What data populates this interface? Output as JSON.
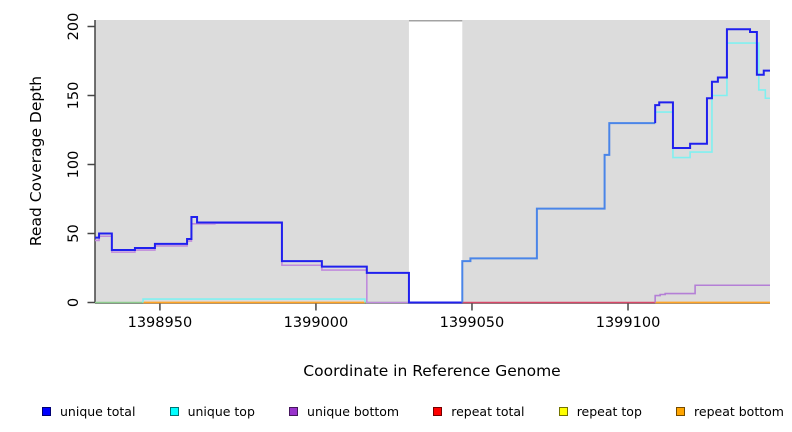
{
  "figure": {
    "x_title": "Coordinate in Reference Genome",
    "y_title": "Read Coverage Depth"
  },
  "chart_data": {
    "type": "line",
    "subtype": "step",
    "title": "",
    "xlabel": "Coordinate in Reference Genome",
    "ylabel": "Read Coverage Depth",
    "xlim": [
      1398929.2,
      1399145.5
    ],
    "ylim": [
      0,
      200
    ],
    "x_ticks": [
      1398950,
      1399000,
      1399050,
      1399100
    ],
    "y_ticks": [
      0,
      50,
      100,
      150,
      200
    ],
    "grid": "off",
    "legend_position": "bottom",
    "background": "#ffffff",
    "plot_background": "#dcdcdc",
    "axis_color": "#454545",
    "masked_region": {
      "from": 1399029.8,
      "to": 1399046.9,
      "color": "#ffffff",
      "top_border": "#a3a3a3"
    },
    "series": [
      {
        "name": "baseline-green-left",
        "color": "#8fcd8f",
        "width": 1.6,
        "steps": [
          [
            1398929.2,
            0
          ]
        ],
        "end": 1398944.6
      },
      {
        "name": "repeat-bottom-left",
        "color": "#ffa426",
        "width": 1.8,
        "steps": [
          [
            1398944.6,
            0
          ]
        ],
        "end": 1399015.7
      },
      {
        "name": "unique-top-left",
        "color": "#80f0f0",
        "width": 1.6,
        "steps": [
          [
            1398944.6,
            0
          ],
          [
            1398944.6,
            2.5
          ],
          [
            1399015.7,
            2.5
          ],
          [
            1399015.7,
            0
          ]
        ],
        "end": 1399015.7
      },
      {
        "name": "baseline-green-mid",
        "color": "#8fcd8f",
        "width": 1.6,
        "steps": [
          [
            1399015.7,
            0
          ]
        ],
        "end": 1399029.8
      },
      {
        "name": "repeat-total-right",
        "color": "#d84868",
        "width": 1.6,
        "steps": [
          [
            1399046.9,
            0
          ]
        ],
        "end": 1399108.7
      },
      {
        "name": "repeat-bottom-right",
        "color": "#ffa426",
        "width": 1.8,
        "steps": [
          [
            1399108.7,
            0
          ]
        ],
        "end": 1399145.5
      },
      {
        "name": "unique-bottom-left",
        "color": "#c08bdc",
        "width": 1.6,
        "steps": [
          [
            1398929.2,
            45
          ],
          [
            1398930.5,
            48
          ],
          [
            1398934.6,
            36.5
          ],
          [
            1398942,
            38
          ],
          [
            1398948.4,
            41
          ],
          [
            1398958.7,
            44.5
          ],
          [
            1398960.1,
            57
          ],
          [
            1398967.6,
            57.5
          ],
          [
            1398989.1,
            27
          ],
          [
            1399001.9,
            23.5
          ],
          [
            1399016.3,
            0
          ]
        ],
        "end": 1399029.8
      },
      {
        "name": "unique-bottom-right",
        "color": "#b47fd6",
        "width": 1.6,
        "steps": [
          [
            1399108.7,
            0
          ],
          [
            1399108.7,
            5
          ],
          [
            1399110.3,
            5.8
          ],
          [
            1399111.9,
            6.5
          ],
          [
            1399121.5,
            12.5
          ]
        ],
        "end": 1399145.5
      },
      {
        "name": "unique-total-left",
        "color": "#2020ee",
        "width": 2,
        "steps": [
          [
            1398929.2,
            47
          ],
          [
            1398930.5,
            50
          ],
          [
            1398934.6,
            38
          ],
          [
            1398942,
            39.5
          ],
          [
            1398948.4,
            42.5
          ],
          [
            1398958.7,
            46
          ],
          [
            1398960.1,
            62
          ],
          [
            1398961.9,
            58
          ],
          [
            1398989.1,
            30
          ],
          [
            1399001.9,
            26
          ],
          [
            1399016.3,
            21.5
          ],
          [
            1399029.8,
            0
          ]
        ],
        "end": 1399046.9
      },
      {
        "name": "unique-total-mid",
        "color": "#4a85e8",
        "width": 2,
        "steps": [
          [
            1399046.9,
            0
          ],
          [
            1399046.9,
            30
          ],
          [
            1399049.5,
            32
          ],
          [
            1399070.8,
            68
          ],
          [
            1399092.5,
            107
          ],
          [
            1399094,
            130
          ]
        ],
        "end": 1399108.7
      },
      {
        "name": "unique-top-right",
        "color": "#80f0f0",
        "width": 1.6,
        "steps": [
          [
            1399108.7,
            130
          ],
          [
            1399108.7,
            138
          ],
          [
            1399114.4,
            105
          ],
          [
            1399119.9,
            109
          ],
          [
            1399126.9,
            150
          ],
          [
            1399131.7,
            188
          ],
          [
            1399141.9,
            154
          ],
          [
            1399144,
            148
          ]
        ],
        "end": 1399145.5
      },
      {
        "name": "unique-total-right",
        "color": "#2020ee",
        "width": 2,
        "steps": [
          [
            1399108.7,
            130
          ],
          [
            1399108.7,
            143
          ],
          [
            1399110,
            145
          ],
          [
            1399114.4,
            112
          ],
          [
            1399119.9,
            115
          ],
          [
            1399125.3,
            148
          ],
          [
            1399126.9,
            160
          ],
          [
            1399128.8,
            163
          ],
          [
            1399131.7,
            198
          ],
          [
            1399139.1,
            196
          ],
          [
            1399141.3,
            165
          ],
          [
            1399143.5,
            168
          ]
        ],
        "end": 1399145.5
      }
    ],
    "legend": [
      {
        "label": "unique total",
        "color": "#0000ff"
      },
      {
        "label": "unique top",
        "color": "#00ffff"
      },
      {
        "label": "unique bottom",
        "color": "#9933cc"
      },
      {
        "label": "repeat total",
        "color": "#ff0000"
      },
      {
        "label": "repeat top",
        "color": "#ffff00"
      },
      {
        "label": "repeat bottom",
        "color": "#ffa500"
      }
    ]
  }
}
